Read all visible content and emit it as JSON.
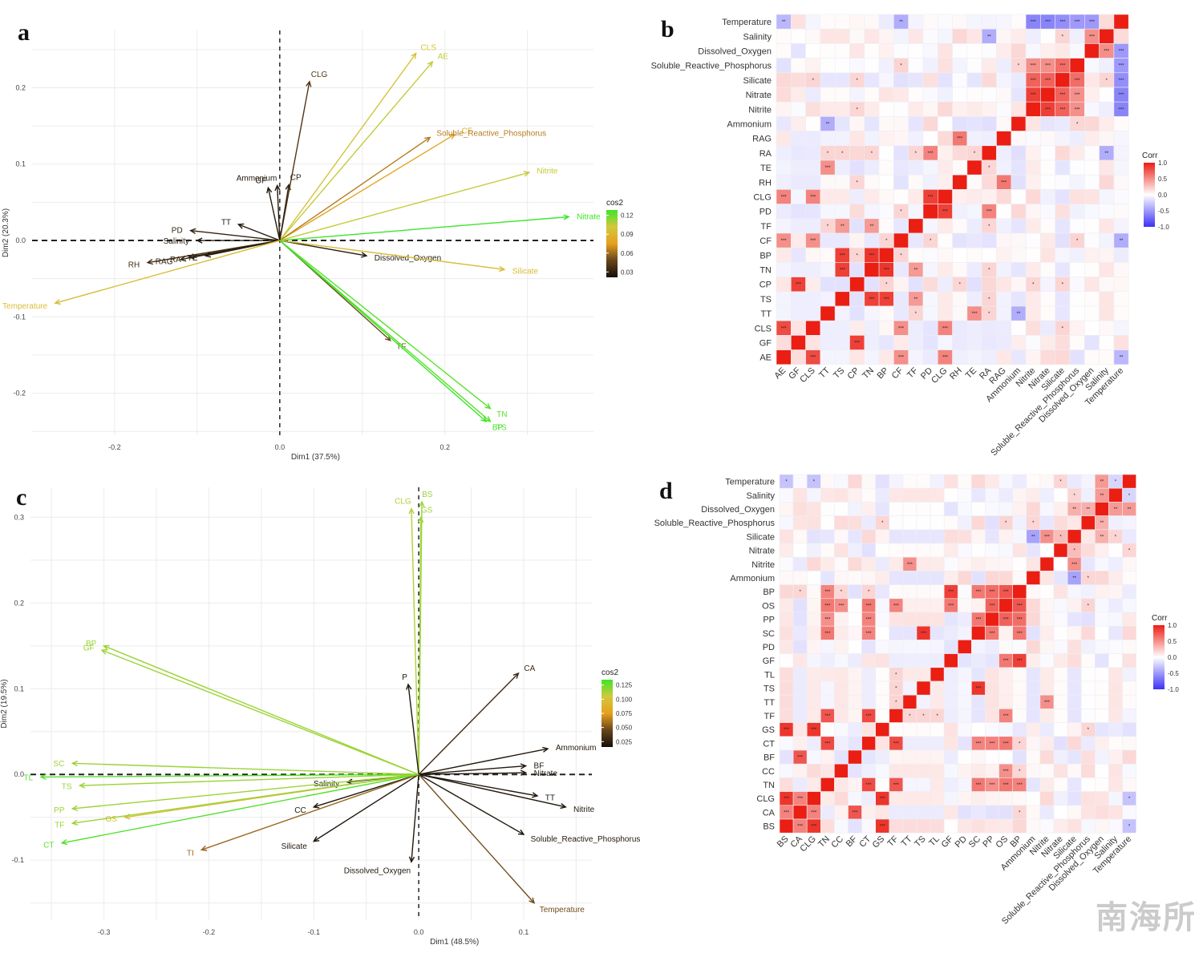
{
  "panels": {
    "a": "a",
    "b": "b",
    "c": "c",
    "d": "d"
  },
  "watermark": "南海所",
  "chart_data": [
    {
      "id": "a",
      "type": "scatter",
      "subtype": "pca-biplot-arrows",
      "title": "",
      "xlabel": "Dim1 (37.5%)",
      "ylabel": "Dim2 (20.3%)",
      "xlim": [
        -0.3,
        0.38
      ],
      "ylim": [
        -0.255,
        0.275
      ],
      "xticks": [
        -0.2,
        0.0,
        0.2
      ],
      "xtick_labels": [
        "-0.2",
        "0.0",
        "0.2"
      ],
      "yticks": [
        -0.2,
        -0.1,
        0.0,
        0.1,
        0.2
      ],
      "ytick_labels": [
        "-0.2",
        "-0.1",
        "0.0",
        "0.1",
        "0.2"
      ],
      "grid": true,
      "legend": {
        "title": "cos2",
        "placement": "right",
        "ticks": [
          "0.12",
          "0.09",
          "0.06",
          "0.03"
        ],
        "range": [
          0.01,
          0.12
        ]
      },
      "vectors": [
        {
          "name": "CLS",
          "x": 0.165,
          "y": 0.245,
          "cos2": 0.09
        },
        {
          "name": "AE",
          "x": 0.185,
          "y": 0.234,
          "cos2": 0.095
        },
        {
          "name": "CLG",
          "x": 0.036,
          "y": 0.208,
          "cos2": 0.03
        },
        {
          "name": "CF",
          "x": 0.212,
          "y": 0.139,
          "cos2": 0.07
        },
        {
          "name": "Soluble_Reactive_Phosphorus",
          "x": 0.182,
          "y": 0.135,
          "cos2": 0.055
        },
        {
          "name": "Nitrite",
          "x": 0.302,
          "y": 0.089,
          "cos2": 0.095
        },
        {
          "name": "Nitrate",
          "x": 0.35,
          "y": 0.031,
          "cos2": 0.12
        },
        {
          "name": "CP",
          "x": 0.011,
          "y": 0.073,
          "cos2": 0.02
        },
        {
          "name": "GF",
          "x": -0.014,
          "y": 0.069,
          "cos2": 0.015
        },
        {
          "name": "Ammonium",
          "x": -0.003,
          "y": 0.072,
          "cos2": 0.015
        },
        {
          "name": "TT",
          "x": -0.05,
          "y": 0.021,
          "cos2": 0.015
        },
        {
          "name": "PD",
          "x": -0.108,
          "y": 0.013,
          "cos2": 0.02
        },
        {
          "name": "Salinity",
          "x": -0.1,
          "y": 0.0,
          "cos2": 0.015
        },
        {
          "name": "RA",
          "x": -0.11,
          "y": -0.022,
          "cos2": 0.02
        },
        {
          "name": "RH",
          "x": -0.16,
          "y": -0.029,
          "cos2": 0.025
        },
        {
          "name": "RAG",
          "x": -0.12,
          "y": -0.025,
          "cos2": 0.02
        },
        {
          "name": "TE",
          "x": -0.09,
          "y": -0.02,
          "cos2": 0.015
        },
        {
          "name": "Temperature",
          "x": -0.272,
          "y": -0.082,
          "cos2": 0.085
        },
        {
          "name": "Dissolved_Oxygen",
          "x": 0.105,
          "y": -0.02,
          "cos2": 0.015
        },
        {
          "name": "Silicate",
          "x": 0.272,
          "y": -0.038,
          "cos2": 0.085
        },
        {
          "name": "TF",
          "x": 0.134,
          "y": -0.131,
          "cos2": 0.04
        },
        {
          "name": "TN",
          "x": 0.255,
          "y": -0.22,
          "cos2": 0.115
        },
        {
          "name": "TS",
          "x": 0.255,
          "y": -0.237,
          "cos2": 0.115
        },
        {
          "name": "BP",
          "x": 0.25,
          "y": -0.237,
          "cos2": 0.12
        }
      ]
    },
    {
      "id": "b",
      "type": "heatmap",
      "title": "",
      "legend": {
        "title": "Corr",
        "placement": "right",
        "ticks": [
          "1.0",
          "0.5",
          "0.0",
          "-0.5",
          "-1.0"
        ],
        "range": [
          -1,
          1
        ]
      },
      "x_labels": [
        "AE",
        "GF",
        "CLS",
        "TT",
        "TS",
        "CP",
        "TN",
        "BP",
        "CF",
        "TF",
        "PD",
        "CLG",
        "RH",
        "TE",
        "RA",
        "RAG",
        "Ammonium",
        "Nitrite",
        "Nitrate",
        "Silicate",
        "Soluble_Reactive_Phosphorus",
        "Dissolved_Oxygen",
        "Salinity",
        "Temperature"
      ],
      "y_labels_top_to_bottom": [
        "Temperature",
        "Salinity",
        "Dissolved_Oxygen",
        "Soluble_Reactive_Phosphorus",
        "Silicate",
        "Nitrate",
        "Nitrite",
        "Ammonium",
        "RAG",
        "RA",
        "TE",
        "RH",
        "CLG",
        "PD",
        "TF",
        "CF",
        "BP",
        "TN",
        "CP",
        "TS",
        "TT",
        "CLS",
        "GF",
        "AE"
      ],
      "strong_pairs": [
        {
          "a": "AE",
          "b": "CLS",
          "r": 0.8
        },
        {
          "a": "GF",
          "b": "CP",
          "r": 0.85
        },
        {
          "a": "TS",
          "b": "TN",
          "r": 0.85
        },
        {
          "a": "TS",
          "b": "BP",
          "r": 0.85
        },
        {
          "a": "TN",
          "b": "BP",
          "r": 0.9
        },
        {
          "a": "CLG",
          "b": "PD",
          "r": 0.85
        },
        {
          "a": "CLG",
          "b": "AE",
          "r": 0.55
        },
        {
          "a": "CLG",
          "b": "CLS",
          "r": 0.55
        },
        {
          "a": "RH",
          "b": "RAG",
          "r": 0.6
        },
        {
          "a": "RA",
          "b": "PD",
          "r": 0.55
        },
        {
          "a": "Nitrite",
          "b": "Nitrate",
          "r": 0.85
        },
        {
          "a": "Nitrite",
          "b": "Silicate",
          "r": 0.7
        },
        {
          "a": "Nitrate",
          "b": "Silicate",
          "r": 0.7
        },
        {
          "a": "Silicate",
          "b": "Soluble_Reactive_Phosphorus",
          "r": 0.65
        },
        {
          "a": "Nitrate",
          "b": "Soluble_Reactive_Phosphorus",
          "r": 0.5
        },
        {
          "a": "Nitrite",
          "b": "Soluble_Reactive_Phosphorus",
          "r": 0.5
        },
        {
          "a": "Dissolved_Oxygen",
          "b": "Salinity",
          "r": 0.5
        },
        {
          "a": "CF",
          "b": "AE",
          "r": 0.5
        },
        {
          "a": "CF",
          "b": "CLS",
          "r": 0.5
        },
        {
          "a": "TF",
          "b": "TS",
          "r": 0.45
        },
        {
          "a": "TF",
          "b": "TN",
          "r": 0.45
        },
        {
          "a": "TT",
          "b": "TE",
          "r": 0.5
        },
        {
          "a": "Temperature",
          "b": "Nitrite",
          "r": -0.6
        },
        {
          "a": "Temperature",
          "b": "Nitrate",
          "r": -0.6
        },
        {
          "a": "Temperature",
          "b": "Silicate",
          "r": -0.55
        },
        {
          "a": "Temperature",
          "b": "Soluble_Reactive_Phosphorus",
          "r": -0.5
        },
        {
          "a": "Temperature",
          "b": "Dissolved_Oxygen",
          "r": -0.5
        },
        {
          "a": "Temperature",
          "b": "CF",
          "r": -0.4
        },
        {
          "a": "Temperature",
          "b": "AE",
          "r": -0.35
        },
        {
          "a": "Salinity",
          "b": "RA",
          "r": -0.4
        },
        {
          "a": "Ammonium",
          "b": "TT",
          "r": -0.4
        }
      ]
    },
    {
      "id": "c",
      "type": "scatter",
      "subtype": "pca-biplot-arrows",
      "title": "",
      "xlabel": "Dim1 (48.5%)",
      "ylabel": "Dim2 (19.5%)",
      "xlim": [
        -0.37,
        0.165
      ],
      "ylim": [
        -0.17,
        0.335
      ],
      "xticks": [
        -0.3,
        -0.2,
        -0.1,
        0.0,
        0.1
      ],
      "xtick_labels": [
        "-0.3",
        "-0.2",
        "-0.1",
        "0.0",
        "0.1"
      ],
      "yticks": [
        -0.1,
        0.0,
        0.1,
        0.2,
        0.3
      ],
      "ytick_labels": [
        "-0.1",
        "0.0",
        "0.1",
        "0.2",
        "0.3"
      ],
      "grid": true,
      "legend": {
        "title": "cos2",
        "placement": "right",
        "ticks": [
          "0.125",
          "0.100",
          "0.075",
          "0.050",
          "0.025"
        ],
        "range": [
          0.005,
          0.13
        ]
      },
      "vectors": [
        {
          "name": "CLG",
          "x": -0.007,
          "y": 0.31,
          "cos2": 0.105
        },
        {
          "name": "BS",
          "x": 0.003,
          "y": 0.318,
          "cos2": 0.11
        },
        {
          "name": "GS",
          "x": 0.002,
          "y": 0.3,
          "cos2": 0.11
        },
        {
          "name": "BP",
          "x": -0.3,
          "y": 0.15,
          "cos2": 0.11
        },
        {
          "name": "GF",
          "x": -0.302,
          "y": 0.145,
          "cos2": 0.11
        },
        {
          "name": "P",
          "x": -0.01,
          "y": 0.105,
          "cos2": 0.01
        },
        {
          "name": "CA",
          "x": 0.095,
          "y": 0.118,
          "cos2": 0.02
        },
        {
          "name": "Ammonium",
          "x": 0.123,
          "y": 0.03,
          "cos2": 0.01
        },
        {
          "name": "BF",
          "x": 0.102,
          "y": 0.01,
          "cos2": 0.01
        },
        {
          "name": "Nitrate",
          "x": 0.102,
          "y": 0.002,
          "cos2": 0.01
        },
        {
          "name": "TT",
          "x": 0.113,
          "y": -0.025,
          "cos2": 0.01
        },
        {
          "name": "Nitrite",
          "x": 0.14,
          "y": -0.038,
          "cos2": 0.01
        },
        {
          "name": "Soluble_Reactive_Phosphorus",
          "x": 0.1,
          "y": -0.07,
          "cos2": 0.01
        },
        {
          "name": "Temperature",
          "x": 0.11,
          "y": -0.15,
          "cos2": 0.04
        },
        {
          "name": "Dissolved_Oxygen",
          "x": -0.007,
          "y": -0.102,
          "cos2": 0.01
        },
        {
          "name": "Silicate",
          "x": -0.1,
          "y": -0.078,
          "cos2": 0.01
        },
        {
          "name": "CC",
          "x": -0.1,
          "y": -0.038,
          "cos2": 0.01
        },
        {
          "name": "Salinity",
          "x": -0.068,
          "y": -0.009,
          "cos2": 0.01
        },
        {
          "name": "TI",
          "x": -0.207,
          "y": -0.088,
          "cos2": 0.05
        },
        {
          "name": "SC",
          "x": -0.33,
          "y": 0.013,
          "cos2": 0.11
        },
        {
          "name": "TL",
          "x": -0.36,
          "y": -0.003,
          "cos2": 0.125
        },
        {
          "name": "TS",
          "x": -0.323,
          "y": -0.013,
          "cos2": 0.11
        },
        {
          "name": "PP",
          "x": -0.33,
          "y": -0.04,
          "cos2": 0.11
        },
        {
          "name": "OS",
          "x": -0.28,
          "y": -0.05,
          "cos2": 0.09
        },
        {
          "name": "TF",
          "x": -0.33,
          "y": -0.057,
          "cos2": 0.11
        },
        {
          "name": "CT",
          "x": -0.34,
          "y": -0.08,
          "cos2": 0.125
        }
      ]
    },
    {
      "id": "d",
      "type": "heatmap",
      "title": "",
      "legend": {
        "title": "Corr",
        "placement": "right",
        "ticks": [
          "1.0",
          "0.5",
          "0.0",
          "-0.5",
          "-1.0"
        ],
        "range": [
          -1,
          1
        ]
      },
      "x_labels": [
        "BS",
        "CA",
        "CLG",
        "TN",
        "CC",
        "BF",
        "CT",
        "GS",
        "TF",
        "TT",
        "TS",
        "TL",
        "GF",
        "PD",
        "SC",
        "PP",
        "OS",
        "BP",
        "Ammonium",
        "Nitrite",
        "Nitrate",
        "Silicate",
        "Soluble_Reactive_Phosphorus",
        "Dissolved_Oxygen",
        "Salinity",
        "Temperature"
      ],
      "y_labels_top_to_bottom": [
        "Temperature",
        "Salinity",
        "Dissolved_Oxygen",
        "Soluble_Reactive_Phosphorus",
        "Silicate",
        "Nitrate",
        "Nitrite",
        "Ammonium",
        "BP",
        "OS",
        "PP",
        "SC",
        "PD",
        "GF",
        "TL",
        "TS",
        "TT",
        "TF",
        "GS",
        "CT",
        "BF",
        "CC",
        "TN",
        "CLG",
        "CA",
        "BS"
      ],
      "strong_pairs": [
        {
          "a": "BS",
          "b": "CLG",
          "r": 0.9
        },
        {
          "a": "BS",
          "b": "GS",
          "r": 0.9
        },
        {
          "a": "BS",
          "b": "CA",
          "r": 0.55
        },
        {
          "a": "CLG",
          "b": "GS",
          "r": 0.9
        },
        {
          "a": "CLG",
          "b": "CA",
          "r": 0.55
        },
        {
          "a": "CA",
          "b": "BF",
          "r": 0.75
        },
        {
          "a": "TN",
          "b": "CT",
          "r": 0.8
        },
        {
          "a": "TN",
          "b": "TF",
          "r": 0.75
        },
        {
          "a": "CT",
          "b": "TF",
          "r": 0.8
        },
        {
          "a": "TS",
          "b": "SC",
          "r": 0.9
        },
        {
          "a": "GF",
          "b": "BP",
          "r": 0.85
        },
        {
          "a": "GF",
          "b": "OS",
          "r": 0.6
        },
        {
          "a": "OS",
          "b": "PP",
          "r": 0.7
        },
        {
          "a": "OS",
          "b": "BP",
          "r": 0.75
        },
        {
          "a": "PP",
          "b": "SC",
          "r": 0.6
        },
        {
          "a": "PP",
          "b": "BP",
          "r": 0.65
        },
        {
          "a": "SC",
          "b": "BP",
          "r": 0.6
        },
        {
          "a": "TN",
          "b": "OS",
          "r": 0.6
        },
        {
          "a": "TN",
          "b": "PP",
          "r": 0.5
        },
        {
          "a": "TN",
          "b": "SC",
          "r": 0.6
        },
        {
          "a": "TN",
          "b": "BP",
          "r": 0.55
        },
        {
          "a": "CT",
          "b": "OS",
          "r": 0.6
        },
        {
          "a": "CT",
          "b": "PP",
          "r": 0.55
        },
        {
          "a": "CT",
          "b": "SC",
          "r": 0.55
        },
        {
          "a": "TF",
          "b": "OS",
          "r": 0.55
        },
        {
          "a": "TT",
          "b": "Nitrite",
          "r": 0.5
        },
        {
          "a": "CC",
          "b": "OS",
          "r": 0.5
        },
        {
          "a": "Nitrite",
          "b": "Silicate",
          "r": 0.5
        },
        {
          "a": "Nitrate",
          "b": "Silicate",
          "r": 0.3
        },
        {
          "a": "Dissolved_Oxygen",
          "b": "Salinity",
          "r": 0.45
        },
        {
          "a": "Dissolved_Oxygen",
          "b": "Temperature",
          "r": 0.45
        },
        {
          "a": "Soluble_Reactive_Phosphorus",
          "b": "Dissolved_Oxygen",
          "r": 0.35
        },
        {
          "a": "Silicate",
          "b": "Ammonium",
          "r": -0.45
        },
        {
          "a": "Silicate",
          "b": "Dissolved_Oxygen",
          "r": 0.35
        },
        {
          "a": "Temperature",
          "b": "BS",
          "r": -0.3
        },
        {
          "a": "Temperature",
          "b": "CLG",
          "r": -0.3
        },
        {
          "a": "Temperature",
          "b": "Salinity",
          "r": -0.2
        }
      ]
    }
  ]
}
